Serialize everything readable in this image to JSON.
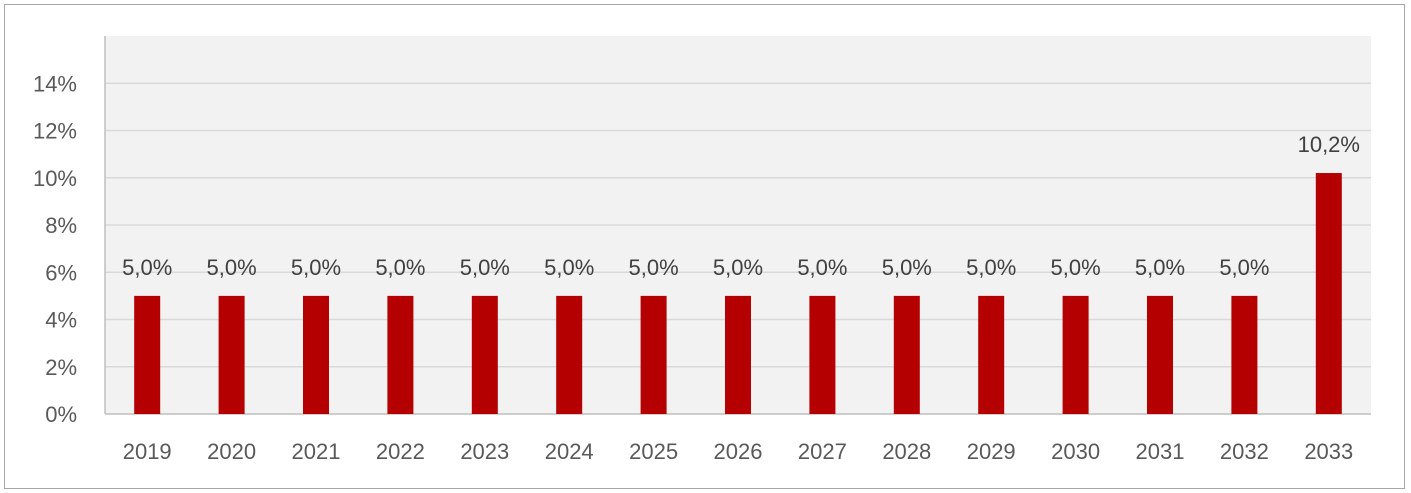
{
  "chart_data": {
    "type": "bar",
    "categories": [
      "2019",
      "2020",
      "2021",
      "2022",
      "2023",
      "2024",
      "2025",
      "2026",
      "2027",
      "2028",
      "2029",
      "2030",
      "2031",
      "2032",
      "2033"
    ],
    "values": [
      5.0,
      5.0,
      5.0,
      5.0,
      5.0,
      5.0,
      5.0,
      5.0,
      5.0,
      5.0,
      5.0,
      5.0,
      5.0,
      5.0,
      10.2
    ],
    "data_labels": [
      "5,0%",
      "5,0%",
      "5,0%",
      "5,0%",
      "5,0%",
      "5,0%",
      "5,0%",
      "5,0%",
      "5,0%",
      "5,0%",
      "5,0%",
      "5,0%",
      "5,0%",
      "5,0%",
      "10,2%"
    ],
    "y_ticks": [
      0,
      2,
      4,
      6,
      8,
      10,
      12,
      14
    ],
    "y_tick_labels": [
      "0%",
      "2%",
      "4%",
      "6%",
      "8%",
      "10%",
      "12%",
      "14%"
    ],
    "ylim": [
      0,
      16
    ],
    "title": "",
    "xlabel": "",
    "ylabel": "",
    "grid": true,
    "legend": "none",
    "colors": {
      "bar": "#b40000",
      "plot_background": "#f2f2f2",
      "gridline": "#d9d9d9",
      "axis": "#bfbfbf"
    }
  }
}
